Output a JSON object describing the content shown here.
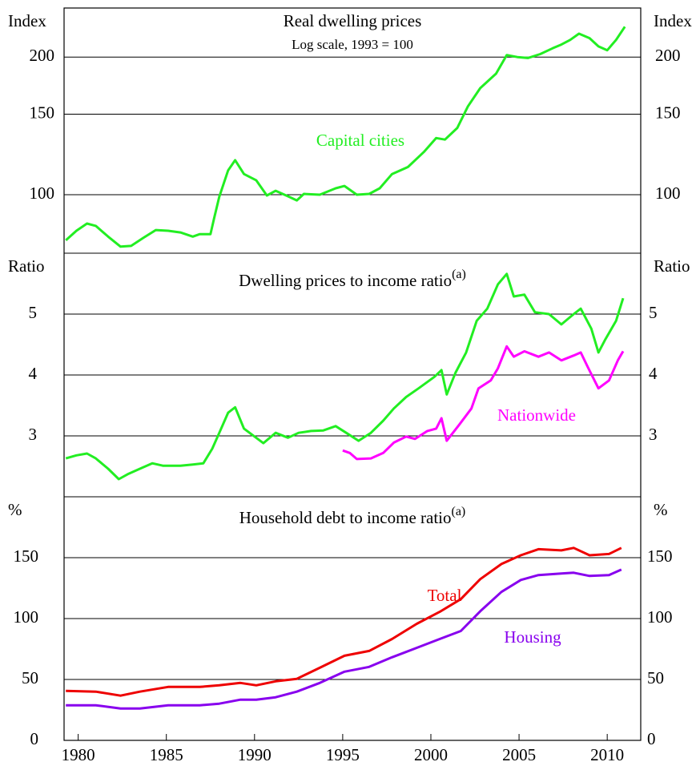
{
  "chart_data": [
    {
      "type": "line",
      "title": "Real dwelling prices",
      "subtitle": "Log scale, 1993 = 100",
      "y_label": "Index",
      "log_scale": true,
      "grid": true,
      "xlim": [
        1979.2,
        2011.9
      ],
      "ylim": [
        74.5,
        256
      ],
      "yticks": [
        100,
        150,
        200
      ],
      "series": [
        {
          "name": "Capital cities",
          "color": "#22ee22",
          "x": [
            1979.3,
            1979.9,
            1980.5,
            1981,
            1981.7,
            1982.4,
            1983,
            1983.7,
            1984.4,
            1985.1,
            1985.8,
            1986.5,
            1986.9,
            1987.5,
            1987.7,
            1988,
            1988.5,
            1988.9,
            1989.4,
            1990.1,
            1990.7,
            1991.2,
            1991.9,
            1992.4,
            1992.8,
            1993.7,
            1994.6,
            1995.1,
            1995.8,
            1996.5,
            1997.1,
            1997.8,
            1998.7,
            1999.6,
            2000.3,
            2000.8,
            2001.5,
            2002.1,
            2002.8,
            2003.7,
            2004.3,
            2004.9,
            2005.5,
            2006.2,
            2006.9,
            2007.4,
            2007.9,
            2008.4,
            2009,
            2009.5,
            2010,
            2010.5,
            2011
          ],
          "values": [
            79.5,
            83.4,
            86.5,
            85.5,
            81,
            77,
            77.3,
            80.5,
            83.7,
            83.4,
            82.7,
            81,
            82,
            82,
            88.6,
            99,
            113,
            119,
            111,
            107.5,
            99.6,
            102,
            99.2,
            97.2,
            100.4,
            100,
            103.3,
            104.5,
            100,
            100.4,
            103.3,
            111,
            115,
            124,
            133,
            132,
            140,
            156,
            171,
            184,
            202,
            200,
            199,
            203,
            209,
            213,
            218,
            225,
            220,
            211,
            207,
            218,
            233
          ]
        }
      ]
    },
    {
      "type": "line",
      "title": "Dwelling prices to income ratio",
      "title_superscript": "(a)",
      "y_label": "Ratio",
      "grid": true,
      "xlim": [
        1979.2,
        2011.9
      ],
      "ylim": [
        2,
        6
      ],
      "yticks": [
        3,
        4,
        5
      ],
      "series": [
        {
          "color": "#22ee22",
          "x": [
            1979.3,
            1979.9,
            1980.5,
            1981,
            1981.7,
            1982.3,
            1982.8,
            1983.5,
            1984.2,
            1984.8,
            1985.8,
            1986.5,
            1987.1,
            1987.6,
            1988,
            1988.5,
            1988.9,
            1989.4,
            1990,
            1990.5,
            1991.2,
            1991.9,
            1992.5,
            1993.2,
            1993.9,
            1994.6,
            1995.2,
            1995.9,
            1996.6,
            1997.3,
            1997.9,
            1998.6,
            1999.3,
            2000.2,
            2000.6,
            2000.9,
            2001.4,
            2002,
            2002.6,
            2003.2,
            2003.8,
            2004.3,
            2004.7,
            2005.3,
            2005.9,
            2006.7,
            2007.4,
            2008.1,
            2008.5,
            2009.1,
            2009.5,
            2009.9,
            2010.5,
            2010.9
          ],
          "values": [
            2.63,
            2.68,
            2.71,
            2.63,
            2.46,
            2.29,
            2.37,
            2.46,
            2.55,
            2.51,
            2.51,
            2.53,
            2.55,
            2.79,
            3.05,
            3.38,
            3.47,
            3.12,
            2.99,
            2.88,
            3.05,
            2.97,
            3.05,
            3.08,
            3.09,
            3.16,
            3.05,
            2.92,
            3.05,
            3.25,
            3.45,
            3.64,
            3.78,
            3.97,
            4.08,
            3.68,
            4.04,
            4.37,
            4.89,
            5.09,
            5.49,
            5.66,
            5.29,
            5.32,
            5.03,
            5.0,
            4.83,
            5.0,
            5.09,
            4.76,
            4.37,
            4.59,
            4.89,
            5.26
          ]
        },
        {
          "name": "Nationwide",
          "color": "#ff00ff",
          "x": [
            1995,
            1995.4,
            1995.8,
            1996.6,
            1997.3,
            1997.9,
            1998.6,
            1999.1,
            1999.8,
            2000.3,
            2000.6,
            2000.9,
            2001.6,
            2002.3,
            2002.7,
            2003.4,
            2003.8,
            2004.3,
            2004.7,
            2005.3,
            2006.1,
            2006.7,
            2007.4,
            2008.1,
            2008.5,
            2008.9,
            2009.5,
            2010.1,
            2010.6,
            2010.9
          ],
          "values": [
            2.76,
            2.72,
            2.62,
            2.63,
            2.72,
            2.89,
            2.99,
            2.95,
            3.08,
            3.12,
            3.29,
            2.92,
            3.18,
            3.45,
            3.78,
            3.91,
            4.11,
            4.47,
            4.3,
            4.39,
            4.3,
            4.37,
            4.24,
            4.32,
            4.37,
            4.13,
            3.78,
            3.91,
            4.24,
            4.39
          ]
        }
      ]
    },
    {
      "type": "line",
      "title": "Household debt to income ratio",
      "title_superscript": "(a)",
      "y_label": "%",
      "grid": true,
      "xlim": [
        1979.2,
        2011.9
      ],
      "xticks": [
        1980,
        1985,
        1990,
        1995,
        2000,
        2005,
        2010
      ],
      "ylim": [
        0,
        200
      ],
      "yticks": [
        0,
        50,
        100,
        150
      ],
      "x": [
        1979.3,
        1981,
        1982.4,
        1983.5,
        1985.1,
        1986.9,
        1988,
        1989.2,
        1990.1,
        1991.2,
        1992.4,
        1993.7,
        1995.1,
        1996.5,
        1997.8,
        1999.2,
        2000.5,
        2001.7,
        2002.8,
        2004,
        2005.1,
        2006.1,
        2007.4,
        2008.1,
        2009,
        2010.1,
        2010.8
      ],
      "series": [
        {
          "name": "Total",
          "color": "#ee0000",
          "values": [
            40.6,
            40,
            36.7,
            40,
            43.9,
            43.9,
            45.2,
            47.2,
            45.2,
            48.5,
            50.5,
            59.6,
            69.5,
            73.4,
            83.2,
            95.7,
            105.5,
            116,
            132.4,
            144.8,
            152,
            157,
            156,
            158,
            152,
            153,
            158
          ]
        },
        {
          "name": "Housing",
          "color": "#8800ee",
          "values": [
            28.8,
            28.8,
            26.2,
            26.2,
            28.8,
            28.8,
            30.1,
            33.4,
            33.4,
            35.4,
            40,
            47.2,
            56.4,
            60.3,
            68.2,
            76,
            83.2,
            89.8,
            106,
            121.9,
            131.7,
            135.7,
            137,
            137.6,
            135,
            135.7,
            140.2
          ]
        }
      ]
    }
  ]
}
